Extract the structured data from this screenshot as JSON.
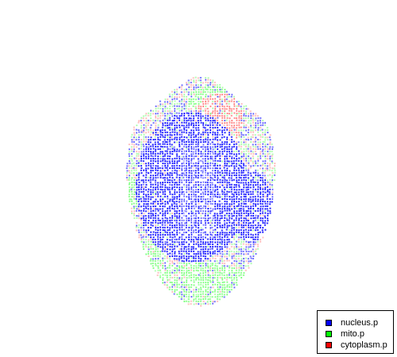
{
  "legend": {
    "items": [
      {
        "label": "nucleus.p",
        "color": "#0000ff"
      },
      {
        "label": "mito.p",
        "color": "#00ff00"
      },
      {
        "label": "cytoplasm.p",
        "color": "#ff0000"
      }
    ]
  },
  "scene": {
    "background": "#ffffff",
    "description_icon": "point-cloud-cell"
  }
}
